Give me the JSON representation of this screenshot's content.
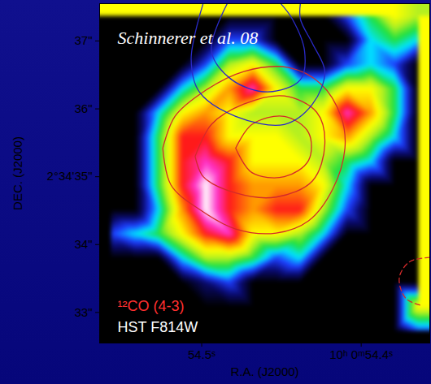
{
  "chart_data": {
    "type": "heatmap",
    "title": "Schinnerer et al. 08",
    "xlabel": "R.A. (J2000)",
    "ylabel": "DEC. (J2000)",
    "xlim": [
      54.564,
      54.357
    ],
    "ylim": [
      32.55,
      37.55
    ],
    "xticks": [
      {
        "value": 54.5,
        "label": "54.5ˢ"
      },
      {
        "value": 54.4,
        "label": "10ʰ 0ᵐ54.4ˢ"
      }
    ],
    "yticks": [
      {
        "value": 33,
        "label": "33\""
      },
      {
        "value": 34,
        "label": "34\""
      },
      {
        "value": 35,
        "label": "2°34'35\""
      },
      {
        "value": 36,
        "label": "36\""
      },
      {
        "value": 37,
        "label": "37\""
      }
    ],
    "color_range": [
      0,
      10
    ],
    "cells": [
      [
        0,
        0,
        0,
        0,
        0,
        0,
        0,
        0,
        0,
        0,
        2,
        4,
        6,
        5
      ],
      [
        0,
        0,
        0,
        0,
        0,
        2,
        2,
        0,
        0,
        0,
        0,
        3,
        4,
        3
      ],
      [
        0,
        0,
        0,
        0,
        2,
        5,
        6,
        4,
        0,
        0,
        2,
        3,
        2,
        0
      ],
      [
        0,
        0,
        0,
        3,
        5,
        7,
        9,
        6,
        4,
        4,
        6,
        6,
        4,
        0
      ],
      [
        0,
        0,
        3,
        6,
        7,
        6,
        5,
        5,
        5,
        6,
        9,
        7,
        4,
        0
      ],
      [
        0,
        0,
        4,
        8,
        8,
        6,
        6,
        6,
        5,
        6,
        7,
        5,
        3,
        0
      ],
      [
        0,
        0,
        4,
        8,
        9,
        8,
        6,
        6,
        6,
        5,
        4,
        3,
        0,
        0
      ],
      [
        0,
        0,
        4,
        8,
        10,
        8,
        7,
        7,
        7,
        6,
        3,
        0,
        0,
        0
      ],
      [
        0,
        0,
        3,
        7,
        10,
        8,
        7,
        8,
        8,
        5,
        2,
        0,
        0,
        0
      ],
      [
        2,
        3,
        4,
        6,
        8,
        9,
        6,
        6,
        5,
        3,
        0,
        0,
        0,
        0
      ],
      [
        0,
        0,
        0,
        3,
        5,
        5,
        4,
        2,
        3,
        0,
        0,
        0,
        0,
        0
      ],
      [
        0,
        0,
        0,
        0,
        1,
        2,
        0,
        0,
        0,
        0,
        0,
        0,
        0,
        0
      ],
      [
        0,
        0,
        0,
        0,
        0,
        0,
        0,
        0,
        0,
        0,
        0,
        0,
        0,
        6
      ],
      [
        0,
        0,
        0,
        0,
        0,
        0,
        0,
        0,
        0,
        0,
        0,
        0,
        0,
        2
      ]
    ],
    "contours": [
      {
        "color": "#d42a2a",
        "line_style": "solid",
        "points": [
          [
            54.5244,
            35.42
          ],
          [
            54.5168,
            35.89
          ],
          [
            54.499,
            36.25
          ],
          [
            54.4736,
            36.55
          ],
          [
            54.4457,
            36.61
          ],
          [
            54.4254,
            36.37
          ],
          [
            54.4127,
            35.89
          ],
          [
            54.4102,
            35.42
          ],
          [
            54.4178,
            34.82
          ],
          [
            54.433,
            34.35
          ],
          [
            54.4533,
            34.17
          ],
          [
            54.4787,
            34.23
          ],
          [
            54.5015,
            34.52
          ],
          [
            54.5193,
            34.88
          ],
          [
            54.5244,
            35.42
          ]
        ]
      },
      {
        "color": "#d42a2a",
        "line_style": "solid",
        "points": [
          [
            54.5041,
            35.3
          ],
          [
            54.4939,
            35.77
          ],
          [
            54.4736,
            36.07
          ],
          [
            54.4482,
            36.19
          ],
          [
            54.4279,
            35.95
          ],
          [
            54.4228,
            35.48
          ],
          [
            54.4305,
            34.94
          ],
          [
            54.4533,
            34.7
          ],
          [
            54.4787,
            34.76
          ],
          [
            54.499,
            35.0
          ],
          [
            54.5041,
            35.3
          ]
        ]
      },
      {
        "color": "#d42a2a",
        "line_style": "solid",
        "points": [
          [
            54.4787,
            35.42
          ],
          [
            54.4685,
            35.77
          ],
          [
            54.4482,
            35.89
          ],
          [
            54.433,
            35.65
          ],
          [
            54.433,
            35.24
          ],
          [
            54.4482,
            35.0
          ],
          [
            54.4685,
            35.06
          ],
          [
            54.4787,
            35.42
          ]
        ]
      },
      {
        "color": "#2a2ac8",
        "line_style": "solid",
        "points": [
          [
            54.499,
            37.56
          ],
          [
            54.5066,
            36.73
          ],
          [
            54.5015,
            36.25
          ],
          [
            54.4787,
            35.89
          ],
          [
            54.4482,
            35.77
          ],
          [
            54.4305,
            36.07
          ],
          [
            54.4228,
            36.55
          ],
          [
            54.4305,
            36.96
          ],
          [
            54.4381,
            37.32
          ],
          [
            54.4381,
            37.56
          ]
        ]
      },
      {
        "color": "#2a2ac8",
        "line_style": "solid",
        "points": [
          [
            54.4838,
            37.56
          ],
          [
            54.4939,
            36.85
          ],
          [
            54.4812,
            36.43
          ],
          [
            54.4584,
            36.25
          ],
          [
            54.4381,
            36.43
          ],
          [
            54.4355,
            36.85
          ],
          [
            54.4431,
            37.32
          ],
          [
            54.4508,
            37.56
          ]
        ]
      },
      {
        "color": "#d42a2a",
        "line_style": "dashed",
        "points": [
          [
            54.3569,
            33.81
          ],
          [
            54.3695,
            33.75
          ],
          [
            54.3761,
            33.51
          ],
          [
            54.3721,
            33.21
          ],
          [
            54.3619,
            33.1
          ]
        ]
      }
    ],
    "annotations": [
      {
        "text": "¹²CO (4-3)",
        "color": "#ff3030"
      },
      {
        "text": "HST F814W",
        "color": "#ffffff"
      }
    ]
  }
}
